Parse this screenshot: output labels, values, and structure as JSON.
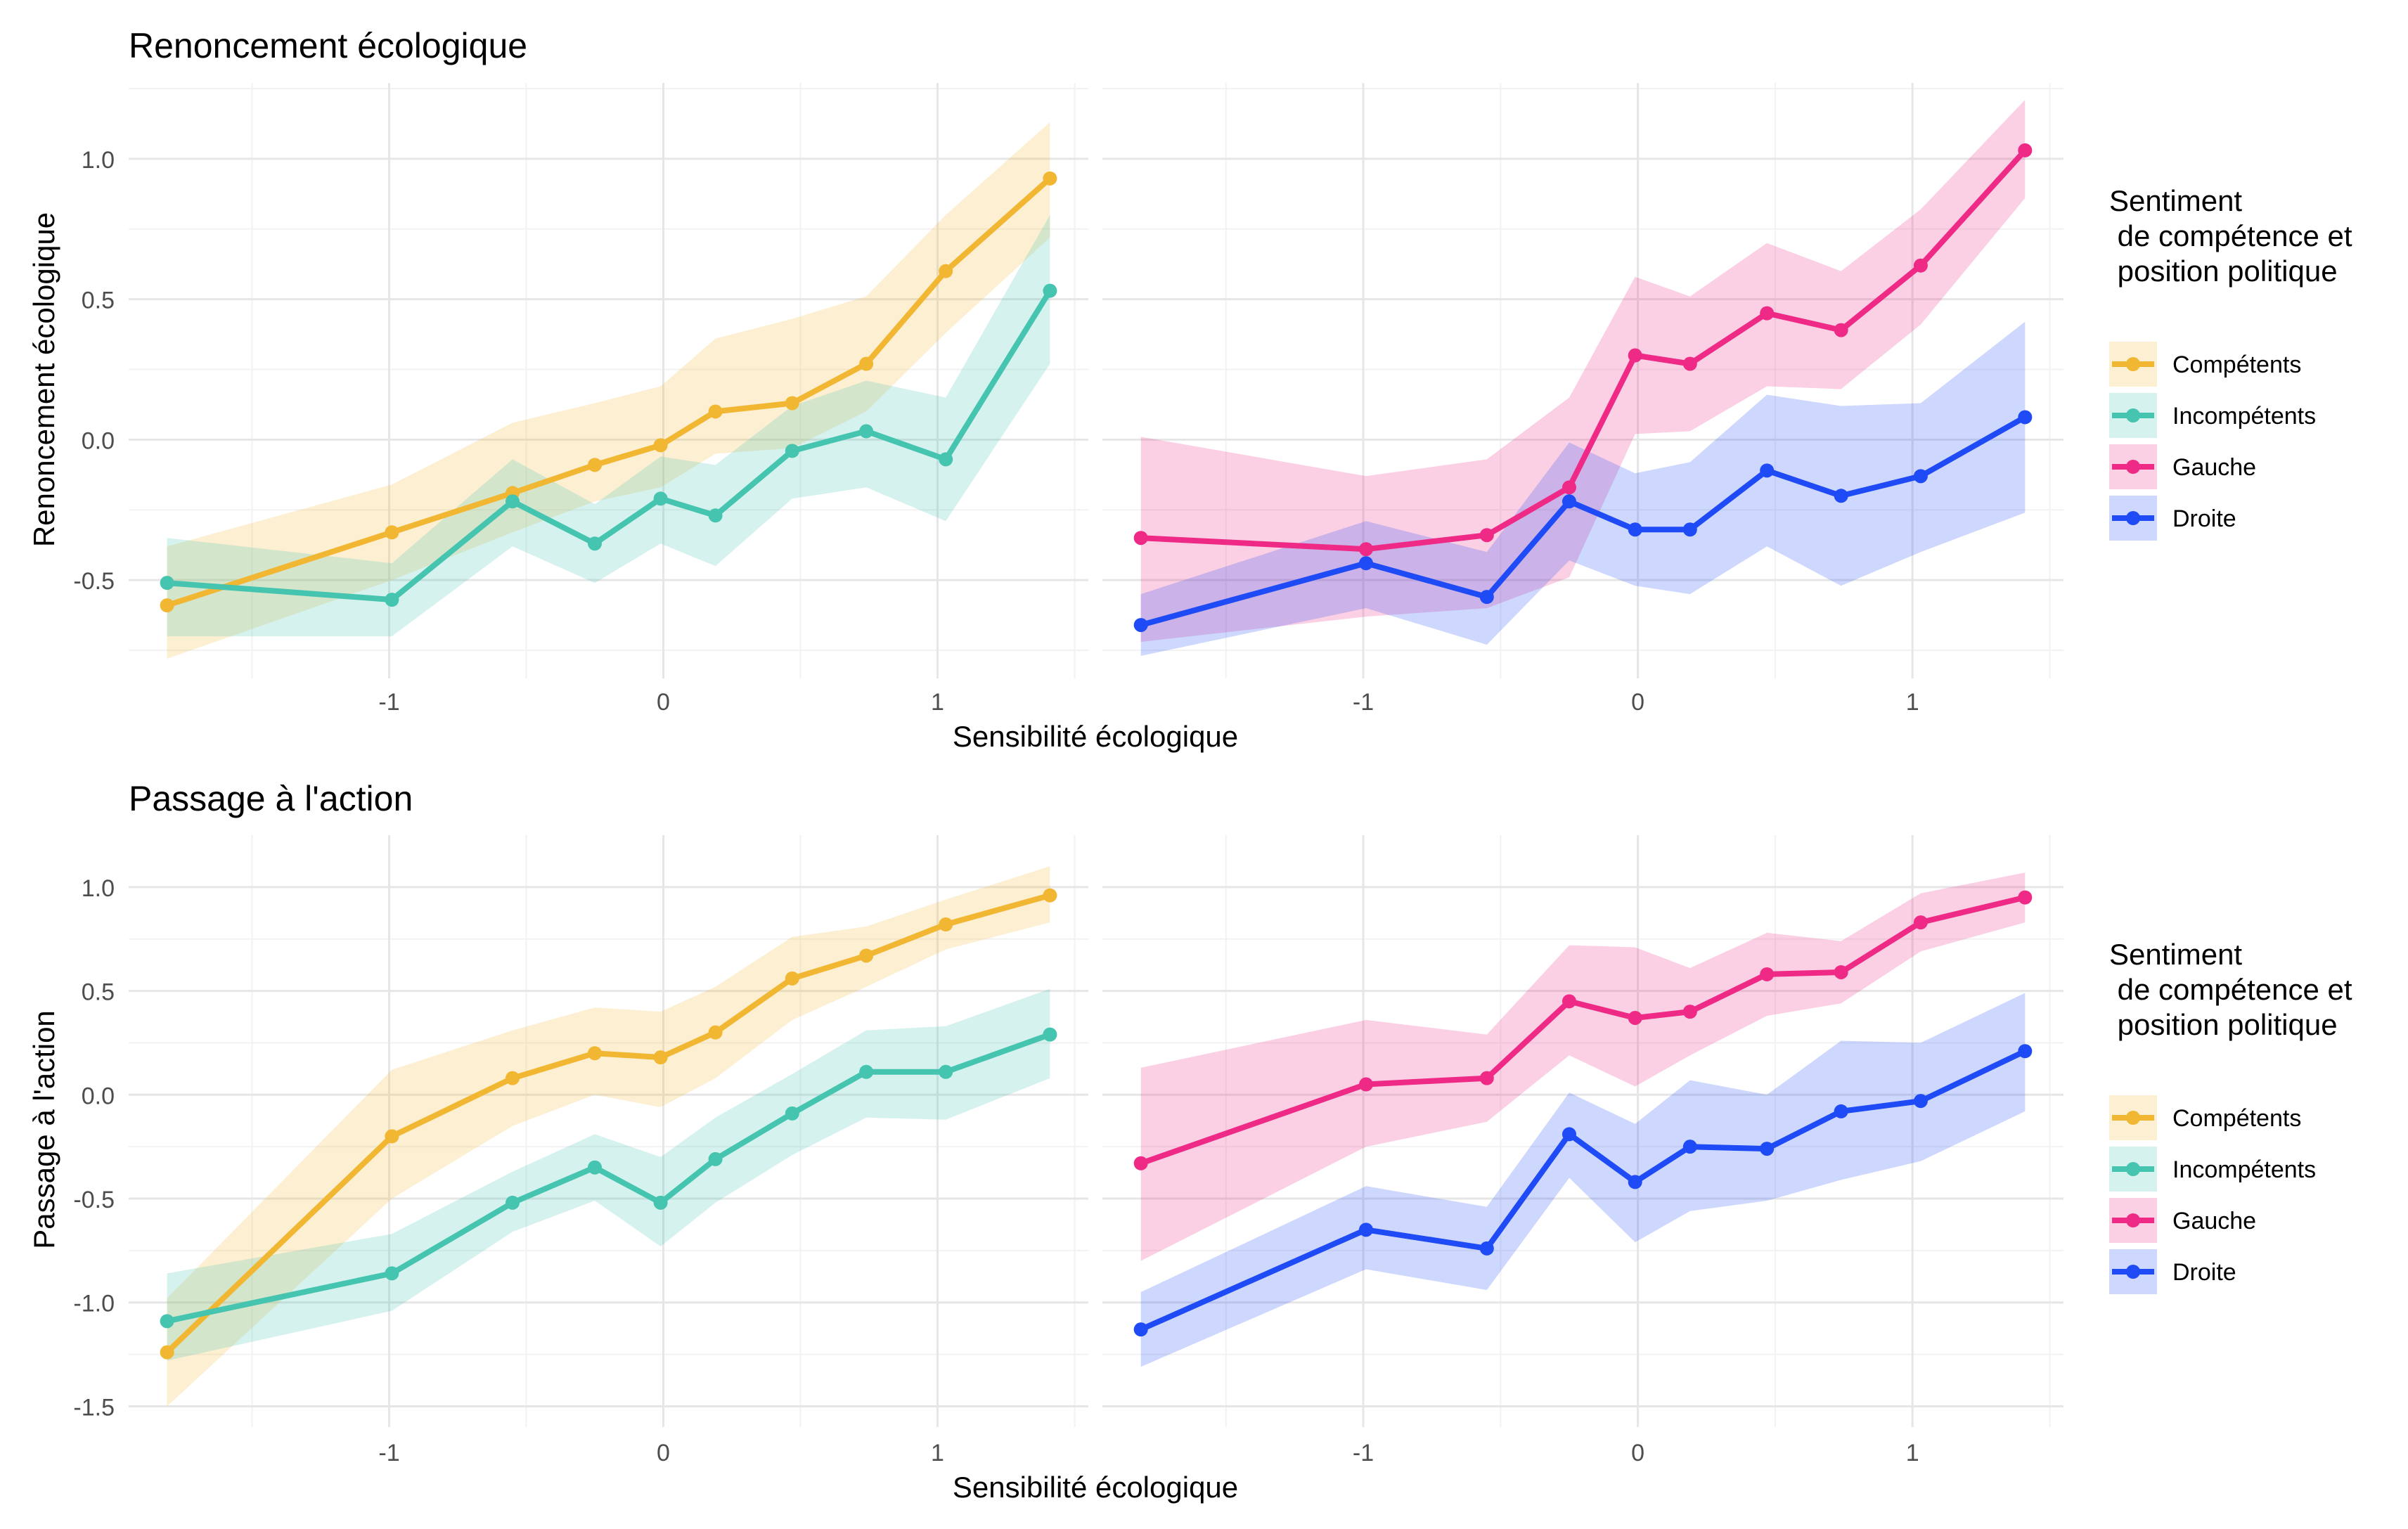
{
  "colors": {
    "competents": "#F2B732",
    "incompetents": "#45C4B0",
    "gauche": "#EE2A86",
    "droite": "#1E4BF5",
    "grid_major": "#E6E6E6",
    "grid_minor": "#F2F2F2",
    "tick_text": "#4D4D4D",
    "text": "#000000"
  },
  "x_axis_label": "Sensibilité écologique",
  "legend": {
    "title_lines": [
      "Sentiment",
      " de compétence et",
      " position politique"
    ],
    "items": [
      {
        "key": "competents",
        "label": "Compétents"
      },
      {
        "key": "incompetents",
        "label": "Incompétents"
      },
      {
        "key": "gauche",
        "label": "Gauche"
      },
      {
        "key": "droite",
        "label": "Droite"
      }
    ]
  },
  "chart_data": [
    {
      "type": "line",
      "title": "Renoncement écologique",
      "ylabel": "Renoncement écologique",
      "xlabel": "Sensibilité écologique",
      "xlim": [
        -1.95,
        1.55
      ],
      "ylim": [
        -0.85,
        1.27
      ],
      "x_ticks": [
        -1,
        0,
        1
      ],
      "x_tick_labels": [
        "-1",
        "0",
        "1"
      ],
      "y_ticks": [
        -0.5,
        0.0,
        0.5,
        1.0
      ],
      "y_tick_labels": [
        "-0.5",
        "0.0",
        "0.5",
        "1.0"
      ],
      "panels": [
        {
          "series": [
            {
              "name": "Compétents",
              "color_key": "competents",
              "x": [
                -1.81,
                -0.99,
                -0.55,
                -0.25,
                -0.01,
                0.19,
                0.47,
                0.74,
                1.03,
                1.41
              ],
              "y": [
                -0.59,
                -0.33,
                -0.19,
                -0.09,
                -0.02,
                0.1,
                0.13,
                0.27,
                0.6,
                0.93
              ],
              "lower": [
                -0.78,
                -0.5,
                -0.33,
                -0.22,
                -0.17,
                -0.05,
                -0.03,
                0.1,
                0.38,
                0.72
              ],
              "upper": [
                -0.38,
                -0.16,
                0.06,
                0.13,
                0.19,
                0.36,
                0.43,
                0.51,
                0.8,
                1.13
              ]
            },
            {
              "name": "Incompétents",
              "color_key": "incompetents",
              "x": [
                -1.81,
                -0.99,
                -0.55,
                -0.25,
                -0.01,
                0.19,
                0.47,
                0.74,
                1.03,
                1.41
              ],
              "y": [
                -0.51,
                -0.57,
                -0.22,
                -0.37,
                -0.21,
                -0.27,
                -0.04,
                0.03,
                -0.07,
                0.53
              ],
              "lower": [
                -0.7,
                -0.7,
                -0.38,
                -0.51,
                -0.37,
                -0.45,
                -0.21,
                -0.17,
                -0.29,
                0.27
              ],
              "upper": [
                -0.35,
                -0.44,
                -0.07,
                -0.23,
                -0.06,
                -0.09,
                0.12,
                0.21,
                0.15,
                0.8
              ]
            }
          ]
        },
        {
          "series": [
            {
              "name": "Gauche",
              "color_key": "gauche",
              "x": [
                -1.81,
                -0.99,
                -0.55,
                -0.25,
                -0.01,
                0.19,
                0.47,
                0.74,
                1.03,
                1.41
              ],
              "y": [
                -0.35,
                -0.39,
                -0.34,
                -0.17,
                0.3,
                0.27,
                0.45,
                0.39,
                0.62,
                1.03
              ],
              "lower": [
                -0.72,
                -0.63,
                -0.6,
                -0.49,
                0.02,
                0.03,
                0.19,
                0.18,
                0.41,
                0.86
              ],
              "upper": [
                0.01,
                -0.13,
                -0.07,
                0.15,
                0.58,
                0.51,
                0.7,
                0.6,
                0.82,
                1.21
              ]
            },
            {
              "name": "Droite",
              "color_key": "droite",
              "x": [
                -1.81,
                -0.99,
                -0.55,
                -0.25,
                -0.01,
                0.19,
                0.47,
                0.74,
                1.03,
                1.41
              ],
              "y": [
                -0.66,
                -0.44,
                -0.56,
                -0.22,
                -0.32,
                -0.32,
                -0.11,
                -0.2,
                -0.13,
                0.08
              ],
              "lower": [
                -0.77,
                -0.6,
                -0.73,
                -0.43,
                -0.52,
                -0.55,
                -0.38,
                -0.52,
                -0.4,
                -0.26
              ],
              "upper": [
                -0.55,
                -0.29,
                -0.4,
                -0.01,
                -0.12,
                -0.08,
                0.16,
                0.12,
                0.13,
                0.42
              ]
            }
          ]
        }
      ]
    },
    {
      "type": "line",
      "title": "Passage à l'action",
      "ylabel": "Passage à l'action",
      "xlabel": "Sensibilité écologique",
      "xlim": [
        -1.95,
        1.55
      ],
      "ylim": [
        -1.6,
        1.25
      ],
      "x_ticks": [
        -1,
        0,
        1
      ],
      "x_tick_labels": [
        "-1",
        "0",
        "1"
      ],
      "y_ticks": [
        -1.5,
        -1.0,
        -0.5,
        0.0,
        0.5,
        1.0
      ],
      "y_tick_labels": [
        "-1.5",
        "-1.0",
        "-0.5",
        "0.0",
        "0.5",
        "1.0"
      ],
      "panels": [
        {
          "series": [
            {
              "name": "Compétents",
              "color_key": "competents",
              "x": [
                -1.81,
                -0.99,
                -0.55,
                -0.25,
                -0.01,
                0.19,
                0.47,
                0.74,
                1.03,
                1.41
              ],
              "y": [
                -1.24,
                -0.2,
                0.08,
                0.2,
                0.18,
                0.3,
                0.56,
                0.67,
                0.82,
                0.96
              ],
              "lower": [
                -1.5,
                -0.5,
                -0.15,
                0.0,
                -0.06,
                0.08,
                0.36,
                0.52,
                0.7,
                0.83
              ],
              "upper": [
                -0.98,
                0.12,
                0.31,
                0.42,
                0.4,
                0.52,
                0.76,
                0.81,
                0.94,
                1.1
              ]
            },
            {
              "name": "Incompétents",
              "color_key": "incompetents",
              "x": [
                -1.81,
                -0.99,
                -0.55,
                -0.25,
                -0.01,
                0.19,
                0.47,
                0.74,
                1.03,
                1.41
              ],
              "y": [
                -1.09,
                -0.86,
                -0.52,
                -0.35,
                -0.52,
                -0.31,
                -0.09,
                0.11,
                0.11,
                0.29
              ],
              "lower": [
                -1.28,
                -1.04,
                -0.66,
                -0.51,
                -0.73,
                -0.52,
                -0.29,
                -0.11,
                -0.12,
                0.08
              ],
              "upper": [
                -0.86,
                -0.67,
                -0.37,
                -0.19,
                -0.3,
                -0.11,
                0.1,
                0.31,
                0.33,
                0.51
              ]
            }
          ]
        },
        {
          "series": [
            {
              "name": "Gauche",
              "color_key": "gauche",
              "x": [
                -1.81,
                -0.99,
                -0.55,
                -0.25,
                -0.01,
                0.19,
                0.47,
                0.74,
                1.03,
                1.41
              ],
              "y": [
                -0.33,
                0.05,
                0.08,
                0.45,
                0.37,
                0.4,
                0.58,
                0.59,
                0.83,
                0.95
              ],
              "lower": [
                -0.8,
                -0.25,
                -0.13,
                0.19,
                0.04,
                0.19,
                0.38,
                0.44,
                0.69,
                0.83
              ],
              "upper": [
                0.13,
                0.36,
                0.29,
                0.72,
                0.71,
                0.61,
                0.78,
                0.74,
                0.97,
                1.07
              ]
            },
            {
              "name": "Droite",
              "color_key": "droite",
              "x": [
                -1.81,
                -0.99,
                -0.55,
                -0.25,
                -0.01,
                0.19,
                0.47,
                0.74,
                1.03,
                1.41
              ],
              "y": [
                -1.13,
                -0.65,
                -0.74,
                -0.19,
                -0.42,
                -0.25,
                -0.26,
                -0.08,
                -0.03,
                0.21
              ],
              "lower": [
                -1.31,
                -0.84,
                -0.94,
                -0.4,
                -0.71,
                -0.56,
                -0.51,
                -0.41,
                -0.32,
                -0.08
              ],
              "upper": [
                -0.95,
                -0.44,
                -0.54,
                0.01,
                -0.14,
                0.07,
                0.0,
                0.26,
                0.25,
                0.49
              ]
            }
          ]
        }
      ]
    }
  ]
}
